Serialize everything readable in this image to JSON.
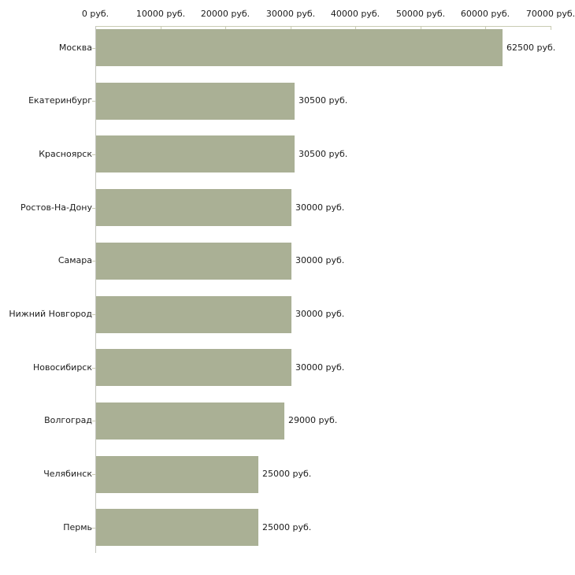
{
  "page": {
    "background_color": "#ffffff"
  },
  "chart_data": {
    "type": "bar",
    "orientation": "horizontal",
    "title": "",
    "unit": "руб.",
    "categories": [
      "Москва",
      "Екатеринбург",
      "Красноярск",
      "Ростов-На-Дону",
      "Самара",
      "Нижний Новгород",
      "Новосибирск",
      "Волгоград",
      "Челябинск",
      "Пермь"
    ],
    "values": [
      62500,
      30500,
      30500,
      30000,
      30000,
      30000,
      30000,
      29000,
      25000,
      25000
    ],
    "value_labels": [
      "62500 руб.",
      "30500 руб.",
      "30500 руб.",
      "30000 руб.",
      "30000 руб.",
      "30000 руб.",
      "30000 руб.",
      "29000 руб.",
      "25000 руб.",
      "25000 руб."
    ],
    "x_axis": {
      "position": "top",
      "min": 0,
      "max": 70000,
      "step": 10000,
      "tick_labels": [
        "0 руб.",
        "10000 руб.",
        "20000 руб.",
        "30000 руб.",
        "40000 руб.",
        "50000 руб.",
        "60000 руб.",
        "70000 руб."
      ]
    },
    "grid": false,
    "legend": null,
    "colors": {
      "bar": "#aab095",
      "axis_line": "#c9cbb2",
      "y_axis_line": "#c3c5bd",
      "text": "#1c1c1c"
    }
  }
}
